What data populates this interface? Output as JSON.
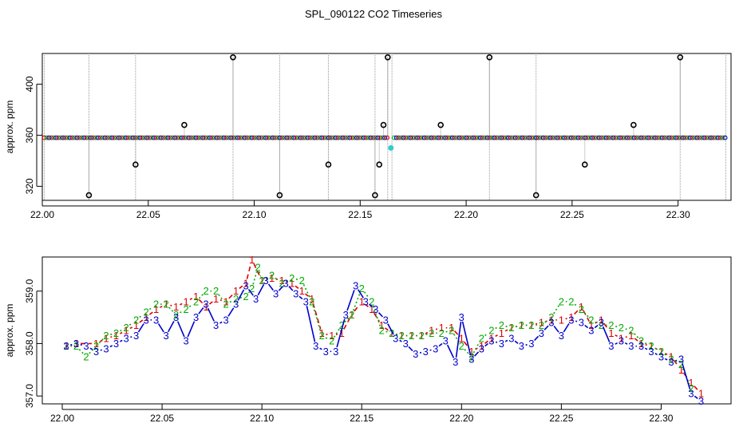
{
  "chart_data": [
    {
      "type": "scatter",
      "title": "SPL_090122  CO2 Timeseries",
      "xlabel": "",
      "ylabel": "approx. ppm",
      "xlim": [
        22.0,
        22.325
      ],
      "ylim": [
        309,
        424
      ],
      "x_ticks": [
        22.0,
        22.05,
        22.1,
        22.15,
        22.2,
        22.25,
        22.3
      ],
      "x_tick_labels": [
        "22.00",
        "22.05",
        "22.10",
        "22.15",
        "22.20",
        "22.25",
        "22.30"
      ],
      "y_ticks": [
        320,
        360,
        400
      ],
      "y_tick_labels": [
        "320",
        "360",
        "400"
      ],
      "series": [
        {
          "name": "marker (black)",
          "color": "#000000",
          "points": [
            [
              22.022,
              313
            ],
            [
              22.044,
              337
            ],
            [
              22.067,
              368
            ],
            [
              22.09,
              421
            ],
            [
              22.112,
              313
            ],
            [
              22.135,
              337
            ],
            [
              22.157,
              313
            ],
            [
              22.159,
              337
            ],
            [
              22.161,
              368
            ],
            [
              22.163,
              421
            ],
            [
              22.188,
              368
            ],
            [
              22.211,
              421
            ],
            [
              22.233,
              313
            ],
            [
              22.256,
              337
            ],
            [
              22.279,
              368
            ],
            [
              22.301,
              421
            ]
          ]
        },
        {
          "name": "calibration (cyan)",
          "color": "#33cccc",
          "points": [
            [
              22.1645,
              350
            ]
          ]
        },
        {
          "name": "vertical drop lines (gray)",
          "color": "#999999",
          "x": [
            22.001,
            22.022,
            22.044,
            22.09,
            22.112,
            22.135,
            22.157,
            22.163,
            22.165,
            22.211,
            22.233,
            22.301,
            22.3225
          ]
        }
      ]
    },
    {
      "type": "line",
      "title": "",
      "xlabel": "",
      "ylabel": "approx. ppm",
      "xlim": [
        21.99,
        22.335
      ],
      "ylim": [
        356.85,
        359.65
      ],
      "x_ticks": [
        22.0,
        22.05,
        22.1,
        22.15,
        22.2,
        22.25,
        22.3
      ],
      "x_tick_labels": [
        "22.00",
        "22.05",
        "22.10",
        "22.15",
        "22.20",
        "22.25",
        "22.30"
      ],
      "y_ticks": [
        357.0,
        358.0,
        359.0
      ],
      "y_tick_labels": [
        "357.0",
        "358.0",
        "359.0"
      ],
      "series": [
        {
          "name": "1",
          "color": "#dd0000",
          "x": [
            22.002,
            22.007,
            22.017,
            22.022,
            22.027,
            22.032,
            22.037,
            22.042,
            22.047,
            22.052,
            22.057,
            22.062,
            22.067,
            22.072,
            22.077,
            22.082,
            22.087,
            22.092,
            22.095,
            22.1,
            22.105,
            22.11,
            22.115,
            22.12,
            22.125,
            22.13,
            22.135,
            22.14,
            22.145,
            22.15,
            22.155,
            22.16,
            22.165,
            22.17,
            22.175,
            22.18,
            22.185,
            22.19,
            22.195,
            22.2,
            22.205,
            22.21,
            22.215,
            22.22,
            22.225,
            22.23,
            22.235,
            22.24,
            22.245,
            22.25,
            22.255,
            22.26,
            22.265,
            22.27,
            22.275,
            22.28,
            22.285,
            22.29,
            22.295,
            22.3,
            22.305,
            22.31,
            22.315,
            22.32
          ],
          "values": [
            357.95,
            358.0,
            358.0,
            358.1,
            358.15,
            358.25,
            358.35,
            358.5,
            358.65,
            358.75,
            358.7,
            358.8,
            358.9,
            358.7,
            358.85,
            358.8,
            359.0,
            359.15,
            359.6,
            359.2,
            359.25,
            359.2,
            359.15,
            359.0,
            358.85,
            358.2,
            358.15,
            358.2,
            358.55,
            358.8,
            358.65,
            358.35,
            358.2,
            358.15,
            358.15,
            358.15,
            358.25,
            358.3,
            358.3,
            358.1,
            357.85,
            357.95,
            358.1,
            358.2,
            358.3,
            358.35,
            358.35,
            358.4,
            358.45,
            358.45,
            358.5,
            358.7,
            358.35,
            358.45,
            358.2,
            358.1,
            358.15,
            358.0,
            357.95,
            357.85,
            357.75,
            357.5,
            357.25,
            357.05
          ]
        },
        {
          "name": "2",
          "color": "#00aa00",
          "x": [
            22.002,
            22.007,
            22.012,
            22.017,
            22.022,
            22.027,
            22.032,
            22.037,
            22.042,
            22.047,
            22.052,
            22.057,
            22.062,
            22.067,
            22.072,
            22.077,
            22.082,
            22.087,
            22.092,
            22.095,
            22.098,
            22.1,
            22.105,
            22.11,
            22.115,
            22.12,
            22.125,
            22.13,
            22.135,
            22.14,
            22.145,
            22.15,
            22.155,
            22.16,
            22.165,
            22.17,
            22.175,
            22.18,
            22.185,
            22.19,
            22.195,
            22.2,
            22.205,
            22.21,
            22.215,
            22.22,
            22.225,
            22.23,
            22.235,
            22.24,
            22.245,
            22.25,
            22.255,
            22.26,
            22.265,
            22.27,
            22.275,
            22.28,
            22.285,
            22.29,
            22.295,
            22.3,
            22.305,
            22.31,
            22.315
          ],
          "values": [
            357.95,
            357.95,
            357.75,
            357.95,
            358.15,
            358.2,
            358.3,
            358.45,
            358.6,
            358.75,
            358.75,
            358.55,
            358.65,
            358.8,
            359.0,
            359.0,
            358.75,
            358.85,
            358.9,
            359.05,
            359.45,
            359.2,
            359.3,
            359.15,
            359.25,
            359.2,
            358.8,
            358.15,
            358.05,
            358.35,
            358.55,
            359.05,
            358.8,
            358.25,
            358.2,
            358.15,
            358.15,
            358.15,
            358.2,
            358.2,
            358.25,
            357.95,
            357.75,
            358.1,
            358.25,
            358.35,
            358.3,
            358.35,
            358.35,
            358.35,
            358.5,
            358.8,
            358.8,
            358.65,
            358.45,
            358.35,
            358.35,
            358.3,
            358.25,
            358.05,
            357.95,
            357.85,
            357.7,
            357.6,
            357.15
          ]
        },
        {
          "name": "3",
          "color": "#0000cc",
          "x": [
            22.002,
            22.007,
            22.012,
            22.017,
            22.022,
            22.027,
            22.032,
            22.037,
            22.042,
            22.047,
            22.052,
            22.057,
            22.062,
            22.067,
            22.072,
            22.077,
            22.082,
            22.087,
            22.092,
            22.097,
            22.102,
            22.107,
            22.112,
            22.117,
            22.122,
            22.127,
            22.132,
            22.137,
            22.142,
            22.147,
            22.152,
            22.157,
            22.162,
            22.167,
            22.172,
            22.177,
            22.182,
            22.187,
            22.192,
            22.197,
            22.2,
            22.205,
            22.21,
            22.215,
            22.22,
            22.225,
            22.23,
            22.235,
            22.24,
            22.245,
            22.25,
            22.255,
            22.26,
            22.265,
            22.27,
            22.275,
            22.28,
            22.285,
            22.29,
            22.295,
            22.3,
            22.305,
            22.31,
            22.315,
            22.32
          ],
          "values": [
            357.95,
            358.0,
            357.95,
            357.85,
            357.9,
            358.0,
            358.1,
            358.15,
            358.45,
            358.45,
            358.15,
            358.5,
            358.05,
            358.5,
            358.75,
            358.35,
            358.45,
            358.75,
            359.1,
            358.85,
            359.2,
            358.95,
            359.15,
            358.95,
            358.8,
            357.95,
            357.85,
            357.85,
            358.55,
            359.1,
            358.8,
            358.65,
            358.45,
            358.1,
            358.0,
            357.8,
            357.85,
            357.9,
            358.05,
            357.65,
            358.5,
            357.7,
            357.9,
            358.05,
            358.0,
            358.1,
            357.95,
            358.0,
            358.2,
            358.4,
            358.15,
            358.45,
            358.4,
            358.25,
            358.4,
            357.95,
            358.05,
            357.95,
            357.95,
            357.85,
            357.75,
            357.65,
            357.7,
            357.05,
            356.9
          ]
        }
      ]
    }
  ]
}
